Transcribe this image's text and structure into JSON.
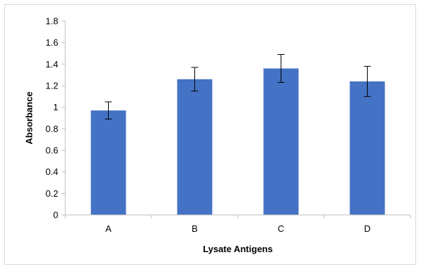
{
  "chart_data": {
    "type": "bar",
    "categories": [
      "A",
      "B",
      "C",
      "D"
    ],
    "series": [
      {
        "values": [
          0.97,
          1.26,
          1.36,
          1.24
        ],
        "error": [
          0.08,
          0.11,
          0.13,
          0.14
        ],
        "color": "#4472C4"
      }
    ],
    "xlabel": "Lysate Antigens",
    "ylabel": "Absorbance",
    "ylim": [
      0,
      1.8
    ],
    "yticks": [
      "0",
      "0.2",
      "0.4",
      "0.6",
      "0.8",
      "1",
      "1.2",
      "1.4",
      "1.6",
      "1.8"
    ],
    "grid": false,
    "legend": "none"
  }
}
